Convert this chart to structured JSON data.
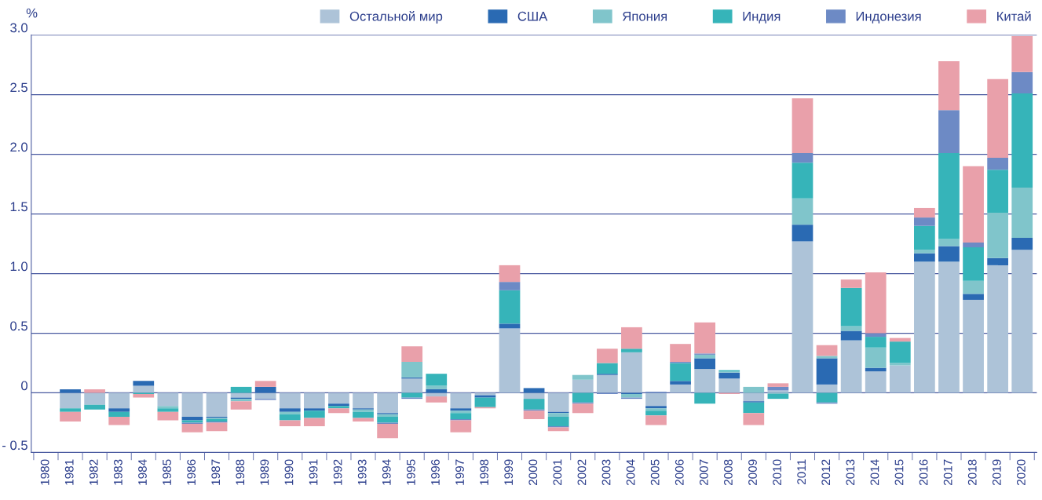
{
  "chart_data": {
    "type": "bar",
    "stacked": true,
    "ylabel": "%",
    "categories": [
      "1980",
      "1981",
      "1982",
      "1983",
      "1984",
      "1985",
      "1986",
      "1987",
      "1988",
      "1989",
      "1990",
      "1991",
      "1992",
      "1993",
      "1994",
      "1995",
      "1996",
      "1997",
      "1998",
      "1999",
      "2000",
      "2001",
      "2002",
      "2003",
      "2004",
      "2005",
      "2006",
      "2007",
      "2008",
      "2009",
      "2010",
      "2011",
      "2012",
      "2013",
      "2014",
      "2015",
      "2016",
      "2017",
      "2018",
      "2019",
      "2020"
    ],
    "series": [
      {
        "name": "Остальной мир",
        "color": "#adc3d8",
        "values": [
          null,
          -0.13,
          -0.1,
          -0.13,
          0.06,
          -0.11,
          -0.2,
          -0.2,
          -0.04,
          -0.05,
          -0.13,
          -0.13,
          -0.09,
          -0.13,
          -0.17,
          0.12,
          -0.03,
          -0.13,
          -0.02,
          0.54,
          -0.05,
          -0.16,
          0.11,
          0.15,
          0.34,
          -0.11,
          0.07,
          0.2,
          0.12,
          -0.07,
          0.02,
          1.27,
          0.07,
          0.44,
          0.18,
          0.23,
          1.1,
          1.1,
          0.78,
          1.07,
          1.2
        ]
      },
      {
        "name": "США",
        "color": "#2a6ab3",
        "values": [
          null,
          0.03,
          null,
          -0.03,
          0.04,
          null,
          -0.03,
          -0.01,
          -0.01,
          0.05,
          -0.03,
          -0.02,
          -0.02,
          -0.01,
          -0.01,
          0.01,
          0.03,
          -0.02,
          -0.02,
          0.04,
          0.04,
          -0.01,
          null,
          0.01,
          -0.01,
          -0.02,
          0.03,
          0.09,
          0.05,
          -0.01,
          null,
          0.14,
          0.22,
          0.08,
          0.03,
          null,
          0.07,
          0.13,
          0.05,
          0.06,
          0.1
        ]
      },
      {
        "name": "Япония",
        "color": "#80c5cb",
        "values": [
          null,
          null,
          null,
          null,
          null,
          -0.02,
          null,
          -0.01,
          -0.02,
          null,
          -0.02,
          null,
          null,
          -0.02,
          -0.02,
          0.13,
          0.03,
          -0.02,
          null,
          null,
          null,
          -0.03,
          0.04,
          null,
          -0.03,
          -0.02,
          null,
          0.03,
          0.01,
          0.05,
          -0.01,
          0.22,
          0.02,
          0.04,
          0.17,
          0.02,
          0.03,
          0.06,
          0.11,
          0.38,
          0.42
        ]
      },
      {
        "name": "Индия",
        "color": "#36b4b9",
        "values": [
          null,
          -0.03,
          -0.04,
          -0.04,
          -0.01,
          -0.03,
          -0.02,
          -0.02,
          0.05,
          null,
          -0.05,
          -0.06,
          -0.02,
          -0.05,
          -0.05,
          -0.04,
          0.1,
          -0.05,
          -0.08,
          0.28,
          -0.09,
          -0.08,
          -0.08,
          0.09,
          0.03,
          -0.04,
          0.15,
          -0.09,
          0.01,
          -0.09,
          -0.04,
          0.3,
          -0.08,
          0.32,
          0.09,
          0.18,
          0.2,
          0.72,
          0.28,
          0.36,
          0.79
        ]
      },
      {
        "name": "Индонезия",
        "color": "#6d8ac5",
        "values": [
          null,
          null,
          null,
          null,
          null,
          null,
          -0.01,
          -0.01,
          null,
          -0.01,
          null,
          null,
          null,
          null,
          -0.01,
          -0.01,
          null,
          -0.01,
          null,
          0.07,
          -0.01,
          -0.01,
          -0.01,
          -0.01,
          -0.01,
          0.01,
          0.01,
          0.01,
          null,
          null,
          0.03,
          0.08,
          -0.01,
          null,
          0.03,
          null,
          0.07,
          0.36,
          0.04,
          0.1,
          0.18
        ]
      },
      {
        "name": "Китай",
        "color": "#e9a0aa",
        "values": [
          null,
          -0.08,
          0.03,
          -0.07,
          -0.03,
          -0.07,
          -0.07,
          -0.07,
          -0.07,
          0.05,
          -0.05,
          -0.07,
          -0.04,
          -0.03,
          -0.12,
          0.13,
          -0.05,
          -0.1,
          -0.01,
          0.14,
          -0.07,
          -0.03,
          -0.08,
          0.12,
          0.18,
          -0.08,
          0.15,
          0.26,
          -0.01,
          -0.1,
          0.03,
          0.46,
          0.09,
          0.07,
          0.51,
          0.03,
          0.08,
          0.41,
          0.64,
          0.66,
          0.3
        ]
      }
    ],
    "ylim": [
      -0.5,
      3.0
    ],
    "yticks": [
      {
        "value": -0.5,
        "label": "- 0.5"
      },
      {
        "value": 0,
        "label": "0"
      },
      {
        "value": 0.5,
        "label": "0.5"
      },
      {
        "value": 1.0,
        "label": "1.0"
      },
      {
        "value": 1.5,
        "label": "1.5"
      },
      {
        "value": 2.0,
        "label": "2.0"
      },
      {
        "value": 2.5,
        "label": "2.5"
      },
      {
        "value": 3.0,
        "label": "3.0"
      }
    ],
    "grid": "y",
    "legend": "top"
  }
}
